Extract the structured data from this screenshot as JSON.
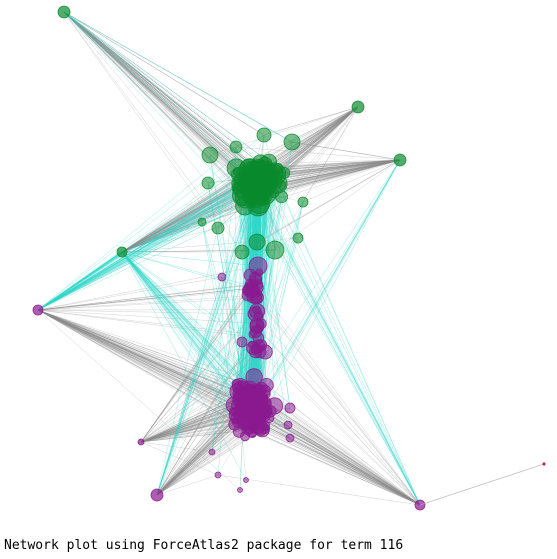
{
  "caption": "Network plot using ForceAtlas2 package for term 116",
  "colors": {
    "community_a": "#0a8a2e",
    "community_b": "#8b1a8f",
    "edge_intra": "#8c8c8c",
    "edge_inter": "#2ed8c9",
    "isolated_edge": "#b0b0b0",
    "isolated_node": "#c0206a"
  }
}
